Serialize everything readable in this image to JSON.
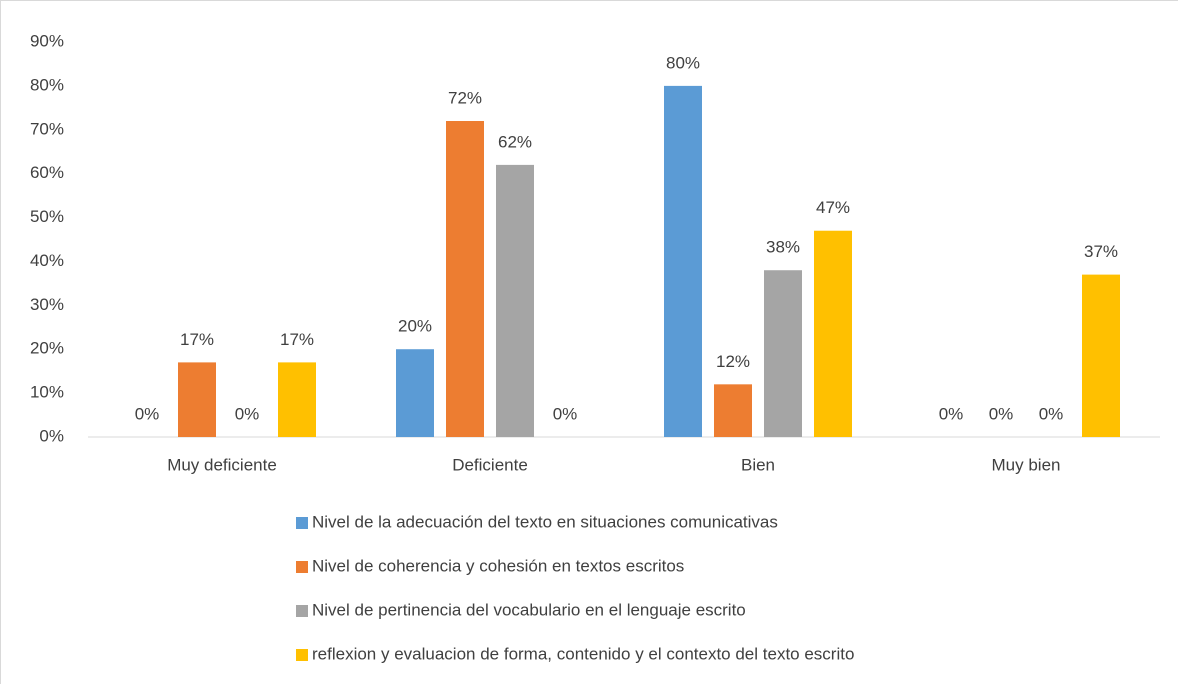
{
  "chart_data": {
    "type": "bar",
    "categories": [
      "Muy deficiente",
      "Deficiente",
      "Bien",
      "Muy bien"
    ],
    "series": [
      {
        "name": "Nivel de la adecuación del texto en situaciones comunicativas",
        "color": "#5b9bd5",
        "values": [
          0,
          20,
          80,
          0
        ],
        "value_labels": [
          "0%",
          "20%",
          "80%",
          "0%"
        ]
      },
      {
        "name": "Nivel de coherencia y cohesión en textos escritos",
        "color": "#ed7d31",
        "values": [
          17,
          72,
          12,
          0
        ],
        "value_labels": [
          "17%",
          "72%",
          "12%",
          "0%"
        ]
      },
      {
        "name": "Nivel de pertinencia del vocabulario en el lenguaje escrito",
        "color": "#a5a5a5",
        "values": [
          0,
          62,
          38,
          0
        ],
        "value_labels": [
          "0%",
          "62%",
          "38%",
          "0%"
        ]
      },
      {
        "name": "reflexion y evaluacion de forma, contenido y el contexto del texto escrito",
        "color": "#ffc000",
        "values": [
          17,
          0,
          47,
          37
        ],
        "value_labels": [
          "17%",
          "0%",
          "47%",
          "37%"
        ]
      }
    ],
    "ylim": [
      0,
      90
    ],
    "yticks": [
      {
        "value": 0,
        "label": "0%"
      },
      {
        "value": 10,
        "label": "10%"
      },
      {
        "value": 20,
        "label": "20%"
      },
      {
        "value": 30,
        "label": "30%"
      },
      {
        "value": 40,
        "label": "40%"
      },
      {
        "value": 50,
        "label": "50%"
      },
      {
        "value": 60,
        "label": "60%"
      },
      {
        "value": 70,
        "label": "70%"
      },
      {
        "value": 80,
        "label": "80%"
      },
      {
        "value": 90,
        "label": "90%"
      }
    ],
    "grid": false,
    "legend": "bottom"
  }
}
